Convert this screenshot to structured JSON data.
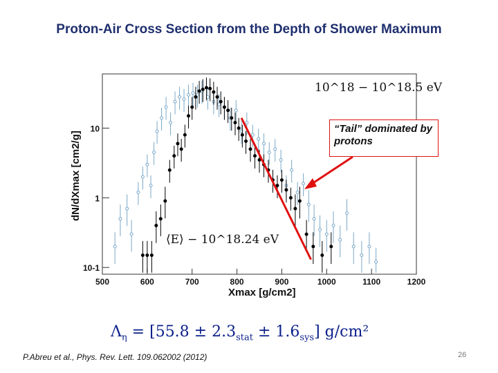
{
  "slide": {
    "title": "Proton-Air Cross Section from the Depth of Shower Maximum",
    "citation": "P.Abreu et al., Phys. Rev. Lett. 109.062002 (2012)",
    "page_number": "26",
    "formula": {
      "lhs": "Λ",
      "lhs_sub": "η",
      "rel": " = [55.8 ± 2.3",
      "sub1": "stat",
      "mid": " ± 1.6",
      "sub2": "sys",
      "end": "] g/cm²"
    },
    "callout": "“Tail” dominated by protons"
  },
  "colors": {
    "title": "#1f2f6e",
    "arrow": "#e01010",
    "formula": "#0a1f8a",
    "light_series": "#7aa8c8",
    "dark_series": "#000000"
  },
  "chart_data": {
    "type": "scatter",
    "title": "",
    "xlabel": "Xmax [g/cm2]",
    "ylabel": "dN/dXmax [cm2/g]",
    "xlim": [
      500,
      1200
    ],
    "ylim": [
      0.08,
      60
    ],
    "y_scale": "log",
    "x_ticks": [
      "500",
      "600",
      "700",
      "800",
      "900",
      "1000",
      "1100",
      "1200"
    ],
    "y_ticks": [
      "10",
      "1",
      "10-1"
    ],
    "annotations": [
      "10^18 − 10^18.5 eV",
      "⟨E⟩ − 10^18.24 eV"
    ],
    "series": [
      {
        "x": [
          528,
          540,
          555,
          565,
          580,
          590,
          600,
          608,
          615,
          622,
          632,
          642,
          652,
          662,
          672,
          682,
          692,
          702,
          712,
          722,
          735,
          748,
          760,
          772,
          785,
          798,
          810,
          822,
          835,
          848,
          860,
          872,
          885,
          898,
          910,
          922,
          935,
          948,
          960,
          972,
          985,
          1000,
          1015,
          1030,
          1045,
          1060,
          1078,
          1095,
          1110
        ],
        "y": [
          0.2,
          0.5,
          0.7,
          0.3,
          1.2,
          2.0,
          3.0,
          1.5,
          4.5,
          9.0,
          14,
          20,
          12,
          24,
          28,
          26,
          30,
          32,
          30,
          34,
          28,
          24,
          22,
          20,
          14,
          18,
          9,
          12,
          8,
          7,
          6,
          4.5,
          5,
          3.5,
          1.5,
          2.5,
          1.2,
          1.6,
          0.8,
          0.5,
          0.35,
          0.3,
          0.4,
          0.25,
          0.6,
          0.2,
          0.15,
          0.2,
          0.12
        ]
      },
      {
        "x": [
          590,
          600,
          610,
          620,
          630,
          640,
          650,
          660,
          668,
          676,
          684,
          692,
          700,
          708,
          716,
          724,
          732,
          740,
          748,
          756,
          764,
          772,
          780,
          788,
          796,
          804,
          812,
          820,
          830,
          840,
          850,
          860,
          870,
          880,
          890,
          900,
          910,
          920,
          930,
          940,
          955,
          970,
          990,
          1010
        ],
        "y": [
          0.15,
          0.15,
          0.15,
          0.4,
          0.5,
          0.9,
          2.5,
          4.0,
          6.0,
          5.0,
          8.0,
          15,
          20,
          28,
          34,
          36,
          38,
          37,
          33,
          28,
          24,
          20,
          18,
          14,
          12,
          10,
          8,
          6.5,
          5,
          4,
          3.5,
          3,
          2.5,
          1.8,
          1.5,
          1.8,
          1.3,
          1.0,
          0.7,
          0.9,
          0.3,
          0.2,
          0.15,
          0.2
        ]
      }
    ],
    "arrow_line": {
      "x": [
        810,
        965
      ],
      "y": [
        14,
        0.13
      ]
    }
  }
}
